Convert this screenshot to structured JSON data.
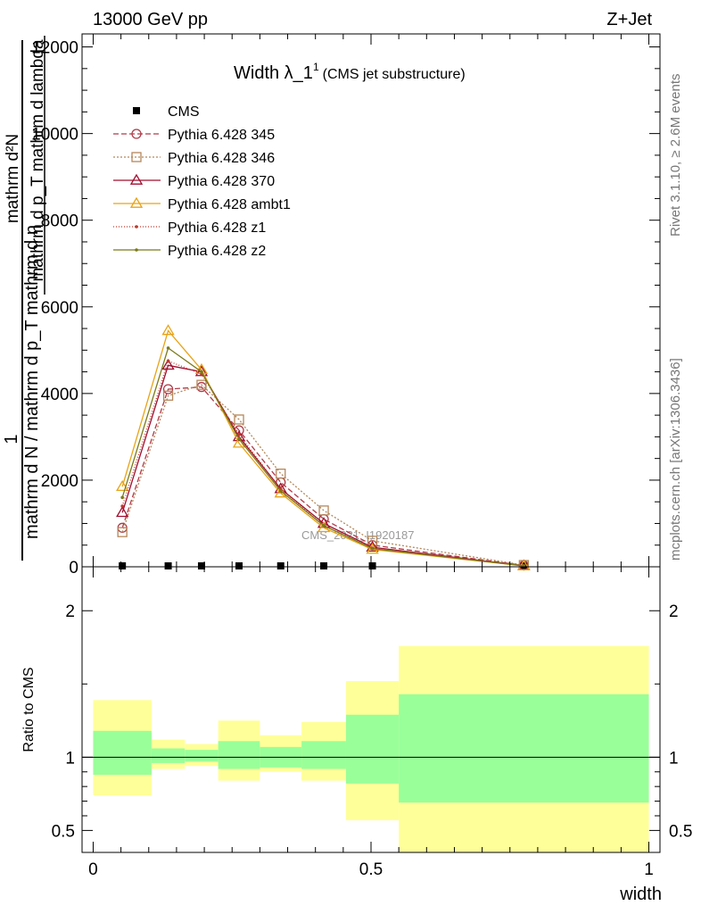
{
  "header": {
    "left": "13000 GeV pp",
    "right": "Z+Jet"
  },
  "side": {
    "rivet": "Rivet 3.1.10, ≥ 2.6M events",
    "mcplots": "mcplots.cern.ch [arXiv:1306.3436]"
  },
  "chart_data": [
    {
      "type": "line",
      "title": "Width λ_1",
      "title_sup": "1",
      "subtitle": "(CMS jet substructure)",
      "ylabel_num": "1",
      "ylabel_den": "mathrm d N / mathrm d p_T mathrm d η",
      "ylabel_frac_num": "mathrm d²N",
      "ylabel_frac_den": "mathrm d p_T mathrm d lambda",
      "xlabel": "",
      "ylim": [
        0,
        12300
      ],
      "yticks": [
        0,
        2000,
        4000,
        6000,
        8000,
        10000,
        12000
      ],
      "ytick_labels": [
        "0",
        "2000",
        "4000",
        "6000",
        "8000",
        "10000",
        "12000"
      ],
      "watermark": "CMS_2021_I1920187",
      "legend_position": "top-left",
      "bins": [
        [
          0,
          0.105
        ],
        [
          0.105,
          0.165
        ],
        [
          0.165,
          0.225
        ],
        [
          0.225,
          0.3
        ],
        [
          0.3,
          0.375
        ],
        [
          0.375,
          0.455
        ],
        [
          0.455,
          0.55
        ],
        [
          0.55,
          1.0
        ]
      ],
      "x": [
        0.0525,
        0.135,
        0.195,
        0.2625,
        0.3375,
        0.415,
        0.5025,
        0.775
      ],
      "series": [
        {
          "name": "CMS",
          "color": "#000000",
          "dash": "",
          "marker": "square-filled",
          "values": [
            0,
            0,
            0,
            0,
            0,
            0,
            0,
            0
          ]
        },
        {
          "name": "Pythia 6.428 345",
          "color": "#b03a48",
          "dash": "6,3",
          "marker": "circle-open",
          "values": [
            900,
            4100,
            4150,
            3150,
            1950,
            1100,
            500,
            30
          ]
        },
        {
          "name": "Pythia 6.428 346",
          "color": "#b5875a",
          "dash": "2,2",
          "marker": "square-open",
          "values": [
            800,
            3950,
            4200,
            3400,
            2150,
            1300,
            600,
            40
          ]
        },
        {
          "name": "Pythia 6.428 370",
          "color": "#a00d2e",
          "dash": "",
          "marker": "triangle-open",
          "values": [
            1250,
            4650,
            4500,
            3000,
            1800,
            1000,
            450,
            25
          ]
        },
        {
          "name": "Pythia 6.428 ambt1",
          "color": "#e8a317",
          "dash": "",
          "marker": "triangle-open",
          "values": [
            1850,
            5450,
            4550,
            2850,
            1700,
            900,
            400,
            20
          ]
        },
        {
          "name": "Pythia 6.428 z1",
          "color": "#c0392b",
          "dash": "1,2",
          "marker": "dot",
          "values": [
            1400,
            4750,
            4450,
            3050,
            1800,
            950,
            430,
            25
          ]
        },
        {
          "name": "Pythia 6.428 z2",
          "color": "#7a7a1a",
          "dash": "",
          "marker": "dot",
          "values": [
            1600,
            5050,
            4500,
            2950,
            1750,
            950,
            420,
            22
          ]
        }
      ]
    },
    {
      "type": "area",
      "ylabel": "Ratio to CMS",
      "xlabel": "width",
      "ylim": [
        0.35,
        2.3
      ],
      "xlim": [
        -0.02,
        1.02
      ],
      "yticks": [
        0.5,
        1,
        2
      ],
      "ytick_labels": [
        "0.5",
        "1",
        "2"
      ],
      "xticks": [
        0,
        0.5,
        1
      ],
      "xtick_labels": [
        "0",
        "0.5",
        "1"
      ],
      "inner_band_color": "#99ff99",
      "outer_band_color": "#ffff99",
      "bins": [
        [
          0,
          0.105
        ],
        [
          0.105,
          0.165
        ],
        [
          0.165,
          0.225
        ],
        [
          0.225,
          0.3
        ],
        [
          0.3,
          0.375
        ],
        [
          0.375,
          0.455
        ],
        [
          0.455,
          0.55
        ],
        [
          0.55,
          1.0
        ]
      ],
      "inner_low": [
        0.88,
        0.96,
        0.97,
        0.92,
        0.93,
        0.92,
        0.82,
        0.69
      ],
      "inner_high": [
        1.18,
        1.06,
        1.05,
        1.11,
        1.07,
        1.11,
        1.29,
        1.43
      ],
      "outer_low": [
        0.74,
        0.92,
        0.94,
        0.84,
        0.9,
        0.84,
        0.57,
        0.35
      ],
      "outer_high": [
        1.39,
        1.12,
        1.09,
        1.25,
        1.15,
        1.24,
        1.52,
        1.76
      ]
    }
  ]
}
